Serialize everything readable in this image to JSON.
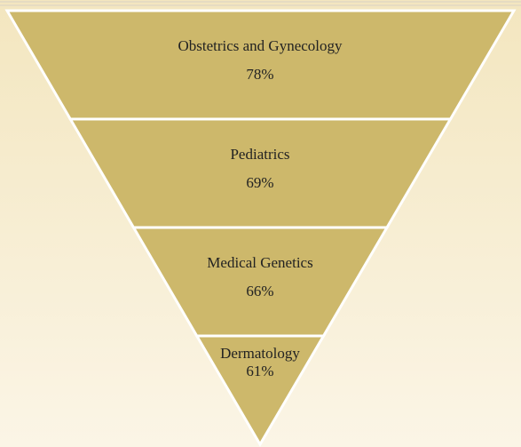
{
  "chart_data": {
    "type": "funnel",
    "categories": [
      "Obstetrics and Gynecology",
      "Pediatrics",
      "Medical Genetics",
      "Dermatology"
    ],
    "values": [
      78,
      69,
      66,
      61
    ],
    "value_labels": [
      "78%",
      "69%",
      "66%",
      "61%"
    ],
    "color": "#cdb86b"
  }
}
